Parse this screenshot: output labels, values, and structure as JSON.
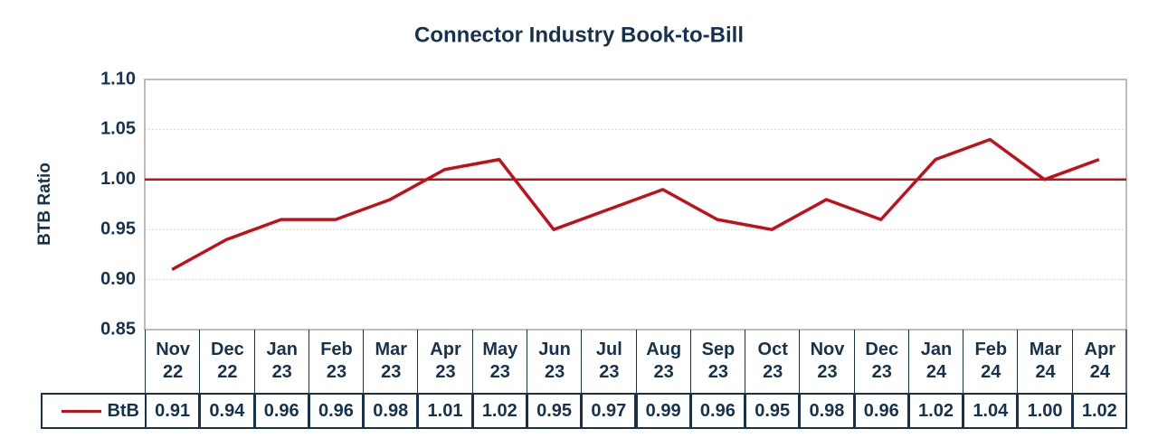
{
  "chart_data": {
    "type": "line",
    "title": "Connector Industry Book-to-Bill",
    "y_label": "BTB Ratio",
    "categories": [
      "Nov 22",
      "Dec 22",
      "Jan 23",
      "Feb 23",
      "Mar 23",
      "Apr 23",
      "May 23",
      "Jun 23",
      "Jul 23",
      "Aug 23",
      "Sep 23",
      "Oct 23",
      "Nov 23",
      "Dec 23",
      "Jan 24",
      "Feb 24",
      "Mar 24",
      "Apr 24"
    ],
    "series": [
      {
        "name": "BtB",
        "color": "#c0101a",
        "values": [
          0.91,
          0.94,
          0.96,
          0.96,
          0.98,
          1.01,
          1.02,
          0.95,
          0.97,
          0.99,
          0.96,
          0.95,
          0.98,
          0.96,
          1.02,
          1.04,
          1.0,
          1.02
        ],
        "value_labels": [
          "0.91",
          "0.94",
          "0.96",
          "0.96",
          "0.98",
          "1.01",
          "1.02",
          "0.95",
          "0.97",
          "0.99",
          "0.96",
          "0.95",
          "0.98",
          "0.96",
          "1.02",
          "1.04",
          "1.00",
          "1.02"
        ]
      }
    ],
    "ylim": [
      0.85,
      1.1
    ],
    "yticks": [
      0.85,
      {
        "value": 0.9,
        "label": "0.90"
      },
      0.95,
      {
        "value": 1,
        "label": "1.00"
      },
      1.05,
      {
        "value": 1.1,
        "label": "1.10"
      }
    ],
    "reference_line": 1,
    "reference_color": "#c0101a",
    "grid": true,
    "data_table": true
  }
}
